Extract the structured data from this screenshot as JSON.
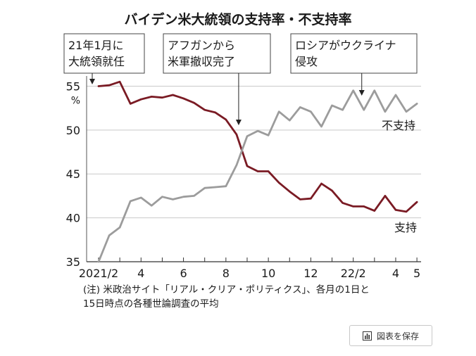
{
  "chart_data": {
    "type": "line",
    "title": "バイデン米大統領の支持率・不支持率",
    "ylabel_unit": "%",
    "ylim": [
      35,
      56
    ],
    "yticks": [
      "35",
      "40",
      "45",
      "50",
      "55"
    ],
    "xticks": [
      {
        "label": "2021/2",
        "t": 0
      },
      {
        "label": "4",
        "t": 4
      },
      {
        "label": "6",
        "t": 8
      },
      {
        "label": "8",
        "t": 12
      },
      {
        "label": "10",
        "t": 16
      },
      {
        "label": "12",
        "t": 20
      },
      {
        "label": "22/2",
        "t": 24
      },
      {
        "label": "4",
        "t": 28
      },
      {
        "label": "5",
        "t": 30
      }
    ],
    "series": [
      {
        "name": "支持",
        "color": "#7a1b24",
        "values": [
          55.0,
          55.1,
          55.5,
          53.0,
          53.5,
          53.8,
          53.7,
          54.0,
          53.6,
          53.1,
          52.3,
          52.0,
          51.2,
          49.5,
          45.9,
          45.3,
          45.3,
          44.0,
          43.0,
          42.1,
          42.2,
          43.9,
          43.1,
          41.7,
          41.3,
          41.3,
          40.8,
          42.5,
          40.9,
          40.7,
          41.8
        ]
      },
      {
        "name": "不支持",
        "color": "#9c9c9c",
        "values": [
          35.0,
          38.0,
          38.9,
          41.9,
          42.3,
          41.4,
          42.4,
          42.1,
          42.4,
          42.5,
          43.4,
          43.5,
          43.6,
          46.0,
          49.3,
          49.9,
          49.4,
          52.1,
          51.1,
          52.6,
          52.1,
          50.4,
          52.8,
          52.3,
          54.5,
          52.3,
          54.5,
          52.1,
          54.0,
          52.1,
          53.0
        ]
      }
    ],
    "annotations": [
      {
        "lines": [
          "21年1月に",
          "大統領就任"
        ],
        "t": 0
      },
      {
        "lines": [
          "アフガンから",
          "米軍撤収完了"
        ],
        "t": 13.2
      },
      {
        "lines": [
          "ロシアがウクライナ",
          "侵攻"
        ],
        "t": 24.8
      }
    ],
    "series_labels": {
      "support": "支持",
      "disapproval": "不支持"
    },
    "note_lines": [
      "(注) 米政治サイト「リアル・クリア・ポリティクス」、各月の1日と",
      "15日時点の各種世論調査の平均"
    ]
  },
  "save_button": {
    "label": "図表を保存",
    "icon": "chart-bar-icon"
  }
}
